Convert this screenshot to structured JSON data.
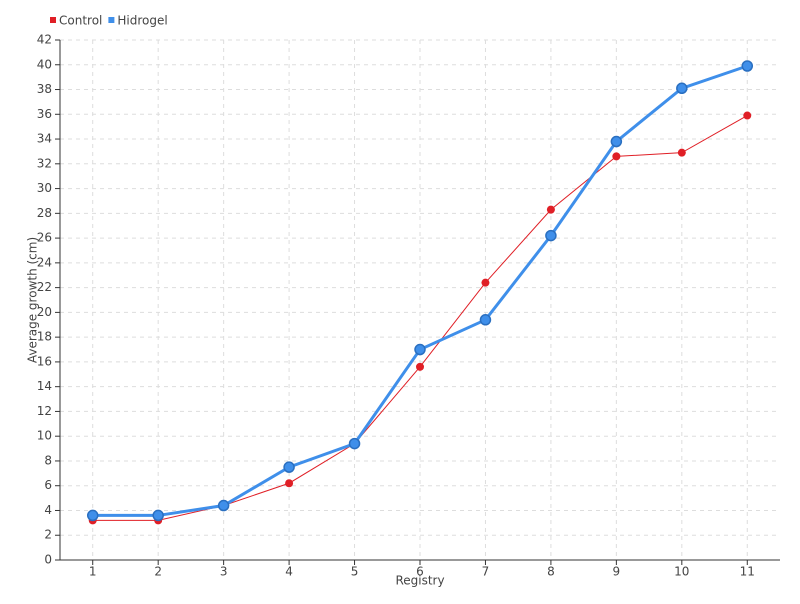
{
  "chart_data": {
    "type": "line",
    "x_label": "Registry",
    "y_label": "Average growth (cm)",
    "categories": [
      "1",
      "2",
      "3",
      "4",
      "5",
      "6",
      "7",
      "8",
      "9",
      "10",
      "11"
    ],
    "series": [
      {
        "name": "Control",
        "color": "#e01f26",
        "values": [
          3.2,
          3.2,
          4.4,
          6.2,
          9.4,
          15.6,
          22.4,
          28.3,
          32.6,
          32.9,
          35.9
        ]
      },
      {
        "name": "Hidrogel",
        "color": "#3f8fea",
        "values": [
          3.6,
          3.6,
          4.4,
          7.5,
          9.4,
          17.0,
          19.4,
          26.2,
          33.8,
          38.1,
          39.9
        ]
      }
    ],
    "ylim": [
      0,
      42
    ],
    "yticks": [
      0,
      2,
      4,
      6,
      8,
      10,
      12,
      14,
      16,
      18,
      20,
      22,
      24,
      26,
      28,
      30,
      32,
      34,
      36,
      38,
      40,
      42
    ],
    "grid": true,
    "legend": "top-left"
  }
}
